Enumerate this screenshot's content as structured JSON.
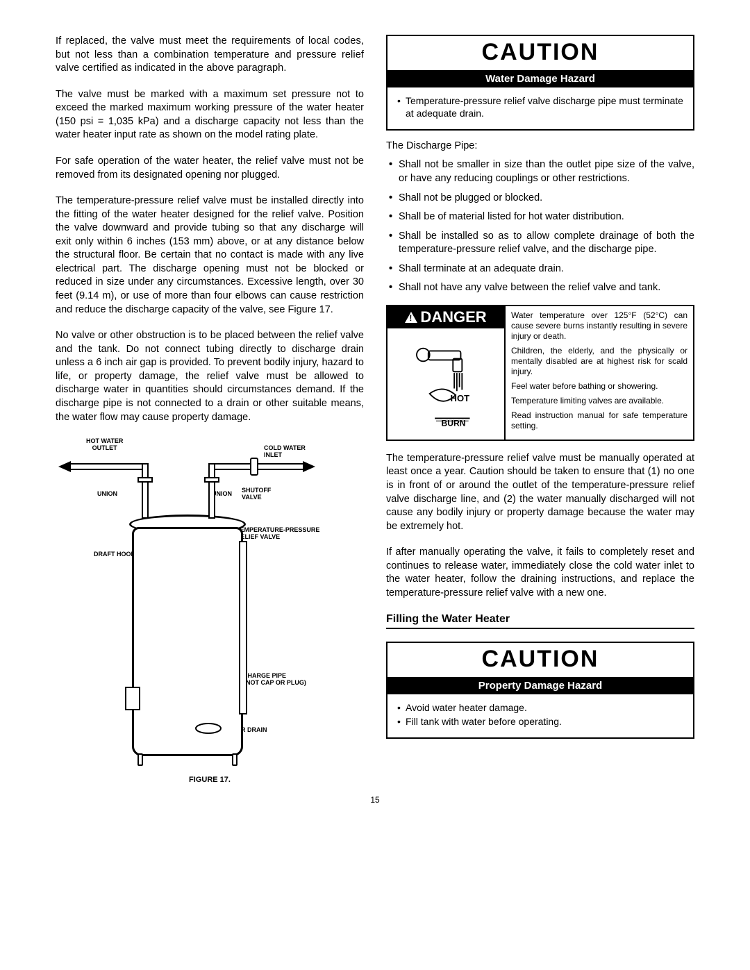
{
  "left": {
    "p1": "If replaced, the valve must meet the requirements of local codes, but not less than a combination temperature and pressure relief valve certified as indicated in the above paragraph.",
    "p2": "The valve must be marked with a maximum set pressure not to exceed the marked maximum working pressure of the water heater (150 psi = 1,035 kPa) and a discharge capacity not less than the water heater input rate as shown on the model rating plate.",
    "p3": "For safe operation of the water heater, the relief valve must not be removed from its designated opening nor plugged.",
    "p4": "The temperature-pressure relief valve must be installed directly into the fitting of the water heater designed for the relief valve. Position the valve downward and provide tubing so that any discharge will exit only within 6 inches (153 mm) above, or at any distance below the structural floor.  Be certain that no contact is made with any live electrical part.  The discharge opening must not be blocked or reduced in size under any circumstances.  Excessive length, over 30 feet (9.14 m), or use of more than four elbows can cause restriction and reduce the discharge capacity of the valve, see Figure 17.",
    "p5": "No valve or other obstruction is to be placed between the relief valve and the tank.  Do not connect tubing directly to discharge drain unless a 6 inch air gap is provided.  To prevent bodily injury, hazard to life, or property damage, the relief valve must be allowed to discharge water in quantities should circumstances demand.  If the discharge pipe is not connected to a drain or other suitable means, the water flow may cause property damage.",
    "figure_caption": "FIGURE 17.",
    "diagram": {
      "hot_water_outlet": "HOT WATER\nOUTLET",
      "cold_water_inlet": "COLD WATER\nINLET",
      "union": "UNION",
      "shutoff": "SHUTOFF\nVALVE",
      "tp_valve": "TEMPERATURE-PRESSURE\nRELIEF VALVE",
      "draft_hood": "DRAFT HOOD",
      "discharge": "DISCHARGE PIPE\n(DO NOT CAP OR PLUG)",
      "floor_drain": "FLOOR DRAIN"
    }
  },
  "right": {
    "caution1": {
      "title": "CAUTION",
      "sub": "Water Damage Hazard",
      "items": [
        "Temperature-pressure relief valve discharge pipe must terminate at adequate drain."
      ]
    },
    "discharge_intro": "The Discharge Pipe:",
    "discharge_items": [
      "Shall not be smaller in size than the outlet pipe size of the valve, or have any reducing couplings or other restrictions.",
      "Shall not be plugged or blocked.",
      "Shall be of material listed for hot water distribution.",
      "Shall be installed so as to allow complete drainage of both the temperature-pressure relief valve, and the discharge pipe.",
      "Shall terminate at an adequate drain.",
      "Shall not have any valve between the relief valve and tank."
    ],
    "danger": {
      "label": "DANGER",
      "hot": "HOT",
      "burn": "BURN",
      "p1": "Water temperature over 125°F (52°C) can cause severe burns instantly resulting in severe injury or death.",
      "p2": "Children, the elderly, and the physically or mentally disabled are at highest risk for scald injury.",
      "p3": "Feel water before bathing or showering.",
      "p4": "Temperature limiting valves are available.",
      "p5": "Read instruction manual for safe temperature setting."
    },
    "p_after1": "The temperature-pressure relief valve must be manually operated at least once a year.  Caution should be taken to ensure that (1) no one is in front of or around the outlet of the temperature-pressure relief valve discharge line, and (2) the water manually discharged will not cause any bodily injury or property damage because the water may be extremely hot.",
    "p_after2": "If after manually operating the valve, it fails to completely reset and continues to release water, immediately close the cold water inlet to the water heater, follow the draining instructions, and replace the temperature-pressure relief valve with a new one.",
    "section": "Filling the Water Heater",
    "caution2": {
      "title": "CAUTION",
      "sub": "Property Damage Hazard",
      "items": [
        "Avoid water heater damage.",
        "Fill tank with water before operating."
      ]
    }
  },
  "page_number": "15",
  "colors": {
    "text": "#000000",
    "bg": "#ffffff",
    "inverse_bg": "#000000",
    "inverse_text": "#ffffff"
  }
}
